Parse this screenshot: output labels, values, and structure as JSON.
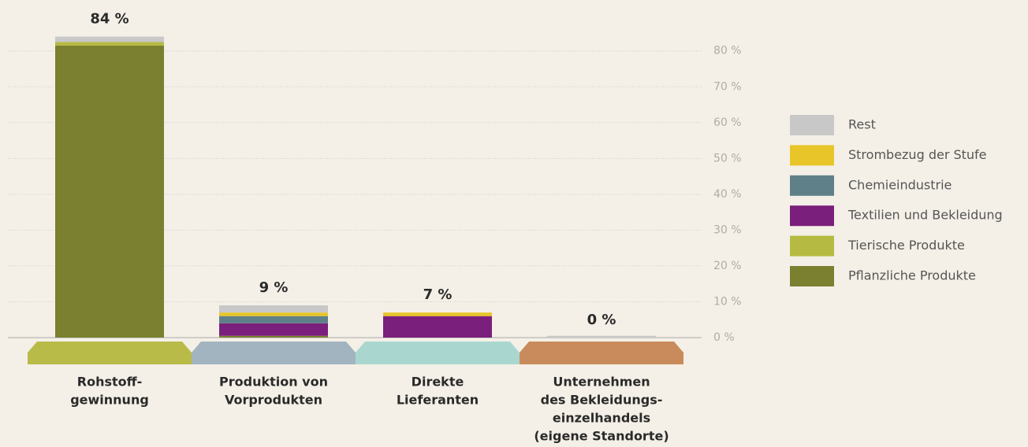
{
  "chart_data": {
    "type": "stacked_bar",
    "categories": [
      [
        "Rohstoff-",
        "gewinnung"
      ],
      [
        "Produktion von",
        "Vorprodukten"
      ],
      [
        "Direkte",
        "Lieferanten"
      ],
      [
        "Unternehmen",
        "des Bekleidungs-",
        "einzelhandels",
        "(eigene Standorte)"
      ]
    ],
    "base_colors": [
      "#b8bb48",
      "#a1b4bf",
      "#a9d7d0",
      "#c98b5b"
    ],
    "series": [
      {
        "name": "Pflanzliche Produkte",
        "color": "#7b8030",
        "values": [
          81.5,
          0.5,
          0,
          0
        ]
      },
      {
        "name": "Tierische Produkte",
        "color": "#b5ba42",
        "values": [
          1,
          0,
          0,
          0
        ]
      },
      {
        "name": "Textilien und Bekleidung",
        "color": "#7b1f7c",
        "values": [
          0,
          3.5,
          6,
          0
        ]
      },
      {
        "name": "Chemieindustrie",
        "color": "#5f8088",
        "values": [
          0,
          2,
          0,
          0
        ]
      },
      {
        "name": "Strombezug der Stufe",
        "color": "#e8c62a",
        "values": [
          0,
          1,
          1,
          0
        ]
      },
      {
        "name": "Rest",
        "color": "#c8c8c8",
        "values": [
          1.5,
          2,
          0,
          0.5
        ]
      }
    ],
    "totals": [
      84,
      9,
      7,
      0
    ],
    "total_labels": [
      "84 %",
      "9 %",
      "7 %",
      "0 %"
    ],
    "ylim": [
      0,
      94
    ],
    "yticks": [
      {
        "value": 0,
        "label": "0 %"
      },
      {
        "value": 10,
        "label": "10 %"
      },
      {
        "value": 20,
        "label": "20 %"
      },
      {
        "value": 30,
        "label": "30 %"
      },
      {
        "value": 40,
        "label": "40 %"
      },
      {
        "value": 50,
        "label": "50 %"
      },
      {
        "value": 60,
        "label": "60 %"
      },
      {
        "value": 70,
        "label": "70 %"
      },
      {
        "value": 80,
        "label": "80 %"
      }
    ],
    "grid": true
  }
}
